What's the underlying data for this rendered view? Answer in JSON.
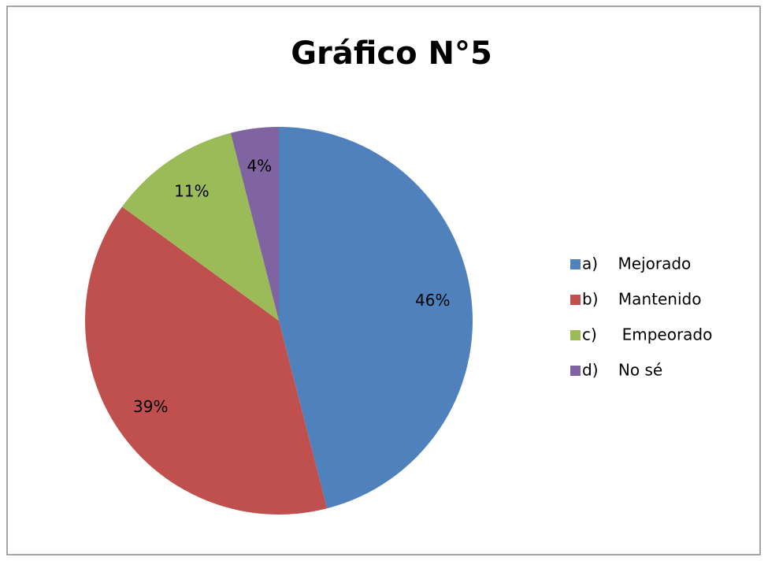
{
  "chart_data": {
    "type": "pie",
    "title": "Gráfico N°5",
    "categories": [
      "a)    Mejorado",
      "b)    Mantenido",
      "c)     Empeorado",
      "d)    No sé"
    ],
    "values": [
      46,
      39,
      11,
      4
    ],
    "value_labels": [
      "46%",
      "39%",
      "11%",
      "4%"
    ],
    "colors": [
      "#4f81bd",
      "#c0504d",
      "#9bbb59",
      "#8064a2"
    ],
    "legend": "right"
  }
}
